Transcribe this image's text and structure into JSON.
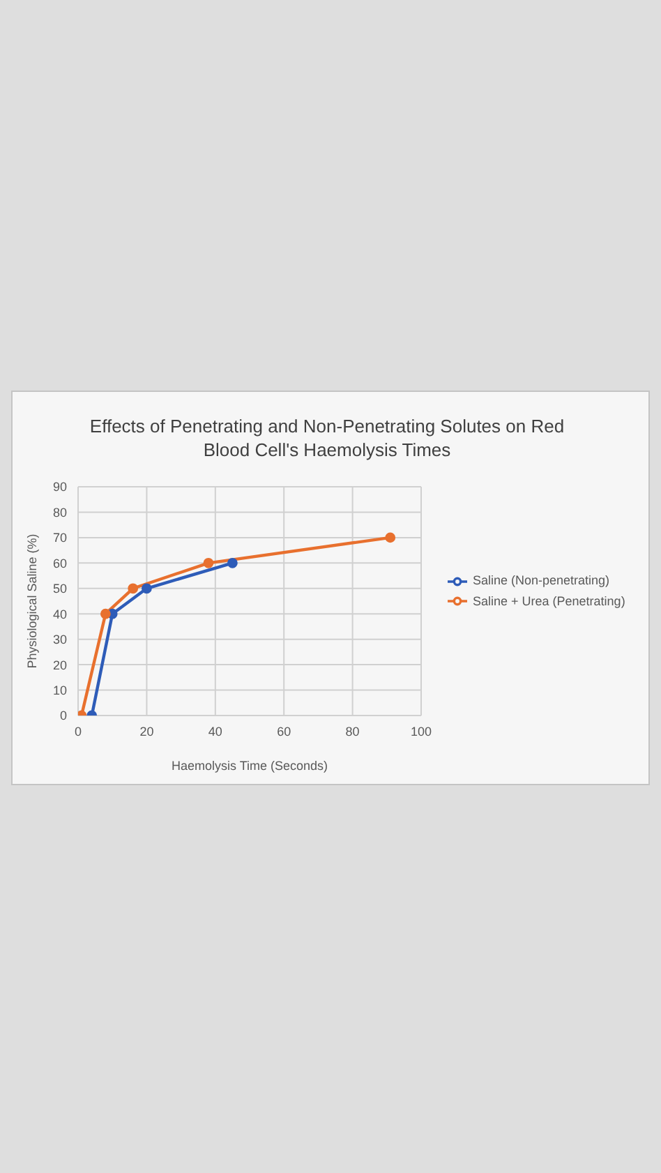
{
  "chart_data": {
    "type": "line",
    "title": "Effects of Penetrating and Non-Penetrating Solutes on Red Blood Cell's Haemolysis Times",
    "xlabel": "Haemolysis Time (Seconds)",
    "ylabel": "Physiological Saline (%)",
    "xlim": [
      0,
      100
    ],
    "xticks": [
      0,
      20,
      40,
      60,
      80,
      100
    ],
    "ylim": [
      0,
      90
    ],
    "yticks": [
      0,
      10,
      20,
      30,
      40,
      50,
      60,
      70,
      80,
      90
    ],
    "grid": true,
    "legend": "right",
    "marker": "circle",
    "line_style": "solid",
    "series": [
      {
        "name": "Saline (Non-penetrating)",
        "color": "#2e5cb8",
        "x": [
          4,
          10,
          20,
          45
        ],
        "values": [
          0,
          40,
          50,
          60
        ]
      },
      {
        "name": "Saline + Urea (Penetrating)",
        "color": "#e8702e",
        "x": [
          1,
          8,
          16,
          38,
          91
        ],
        "values": [
          0,
          40,
          50,
          60,
          70
        ]
      }
    ]
  }
}
